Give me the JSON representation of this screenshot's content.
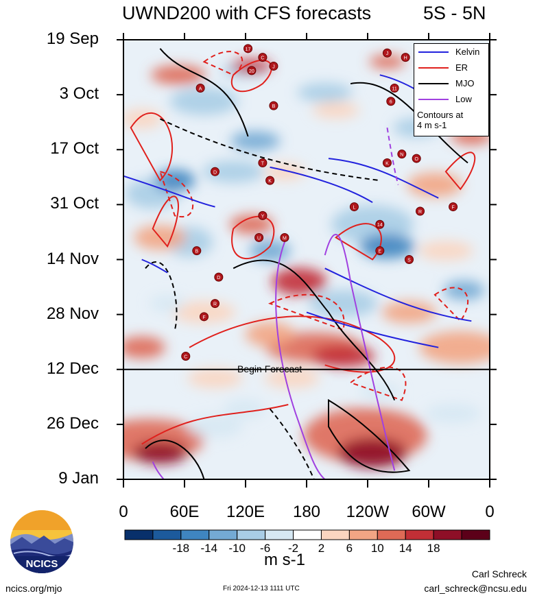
{
  "header": {
    "title": "UWND200 with CFS forecasts",
    "region": "5S - 5N"
  },
  "chart_data": {
    "type": "heatmap",
    "title": "UWND200 with CFS forecasts",
    "region": "5S - 5N",
    "ylabels": [
      "19 Sep",
      "3 Oct",
      "17 Oct",
      "31 Oct",
      "14 Nov",
      "28 Nov",
      "12 Dec",
      "26 Dec",
      "9 Jan"
    ],
    "xlabels": [
      "0",
      "60E",
      "120E",
      "180",
      "120W",
      "60W",
      "0"
    ],
    "xlim": [
      0,
      360
    ],
    "forecast_start": "12 Dec",
    "forecast_label": "Begin Forecast",
    "colorbar": {
      "ticks": [
        "-18",
        "-14",
        "-10",
        "-6",
        "-2",
        "2",
        "6",
        "10",
        "14",
        "18"
      ],
      "levels": [
        -22,
        -18,
        -14,
        -10,
        -6,
        -2,
        2,
        6,
        10,
        14,
        18,
        22
      ],
      "colors": [
        "#08306b",
        "#1c5a9c",
        "#3f85c0",
        "#74aad4",
        "#a9cde6",
        "#d6e8f3",
        "#ffffff",
        "#fbd5c0",
        "#f2a584",
        "#de6a56",
        "#c22f36",
        "#8e0f27",
        "#5c0019"
      ],
      "units": "m s-1"
    },
    "legend": {
      "entries": [
        {
          "name": "Kelvin",
          "color": "#2222dd"
        },
        {
          "name": "ER",
          "color": "#e0201c"
        },
        {
          "name": "MJO",
          "color": "#000000"
        },
        {
          "name": "Low",
          "color": "#a040e0"
        }
      ],
      "note_line1": "Contours at",
      "note_line2": "4 m s-1"
    },
    "storm_markers": [
      "17",
      "C",
      "20",
      "J",
      "J",
      "H",
      "A",
      "11",
      "B",
      "6",
      "D",
      "T",
      "N",
      "O",
      "K",
      "K",
      "D",
      "L",
      "14",
      "Y",
      "F",
      "B",
      "U",
      "M",
      "S",
      "R",
      "E",
      "R",
      "F",
      "C"
    ]
  },
  "footer": {
    "logo_text": "NCICS",
    "left": "ncics.org/mjo",
    "timestamp": "Fri 2024-12-13 1111 UTC",
    "author": "Carl Schreck",
    "email": "carl_schreck@ncsu.edu"
  }
}
